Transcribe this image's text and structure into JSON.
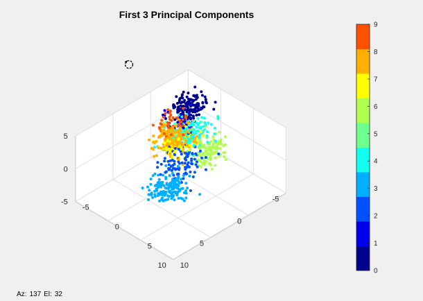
{
  "status": {
    "az_label": "Az:",
    "az_value": "137",
    "el_label": "El:",
    "el_value": "32"
  },
  "colors": {
    "background": "#f0f0f0",
    "axes_face": "#ffffff",
    "grid": "#e1e1e1",
    "axis_line": "#262626"
  },
  "chart_data": {
    "type": "scatter",
    "title": "First 3 Principal Components",
    "view": {
      "azimuth": 137,
      "elevation": 32
    },
    "xlim": [
      -5,
      10
    ],
    "ylim": [
      -5,
      10
    ],
    "zlim": [
      -5,
      5
    ],
    "x_ticks": [
      "-5",
      "0",
      "5",
      "10"
    ],
    "y_ticks": [
      "-5",
      "0",
      "5",
      "10"
    ],
    "z_ticks": [
      "-5",
      "0",
      "5"
    ],
    "grid": true,
    "colorbar": {
      "placement": "right",
      "range": [
        0,
        9
      ],
      "ticks": [
        "0",
        "1",
        "2",
        "3",
        "4",
        "5",
        "6",
        "7",
        "8",
        "9"
      ],
      "colors": [
        "#00008f",
        "#0000ef",
        "#0050ff",
        "#00afff",
        "#10ffef",
        "#6fff8f",
        "#afff50",
        "#ffff00",
        "#ffaf00",
        "#ff5000"
      ]
    },
    "clusters": [
      {
        "class": 0,
        "center": [
          -3.5,
          -3.2,
          1.3
        ],
        "spread": [
          1.0,
          1.0,
          0.9
        ],
        "n": 150
      },
      {
        "class": 1,
        "center": [
          -1.0,
          -1.8,
          1.5
        ],
        "spread": [
          0.9,
          0.9,
          0.7
        ],
        "n": 40
      },
      {
        "class": 2,
        "center": [
          2.0,
          2.0,
          -0.5
        ],
        "spread": [
          1.2,
          1.2,
          0.9
        ],
        "n": 100
      },
      {
        "class": 3,
        "center": [
          5.2,
          3.8,
          -1.1
        ],
        "spread": [
          1.0,
          1.0,
          0.8
        ],
        "n": 160
      },
      {
        "class": 4,
        "center": [
          -1.0,
          -0.5,
          0.8
        ],
        "spread": [
          1.2,
          1.2,
          0.7
        ],
        "n": 140
      },
      {
        "class": 5,
        "center": [
          -0.5,
          -0.8,
          0.3
        ],
        "spread": [
          1.0,
          1.0,
          0.7
        ],
        "n": 60
      },
      {
        "class": 6,
        "center": [
          -2.0,
          1.2,
          -1.5
        ],
        "spread": [
          1.1,
          1.1,
          0.8
        ],
        "n": 140
      },
      {
        "class": 7,
        "center": [
          1.0,
          0.2,
          0.9
        ],
        "spread": [
          1.0,
          1.0,
          0.7
        ],
        "n": 80
      },
      {
        "class": 8,
        "center": [
          1.0,
          -0.3,
          1.3
        ],
        "spread": [
          1.0,
          1.0,
          0.8
        ],
        "n": 180
      },
      {
        "class": 9,
        "center": [
          0.5,
          -1.0,
          3.0
        ],
        "spread": [
          0.9,
          0.9,
          0.7
        ],
        "n": 40
      }
    ]
  }
}
